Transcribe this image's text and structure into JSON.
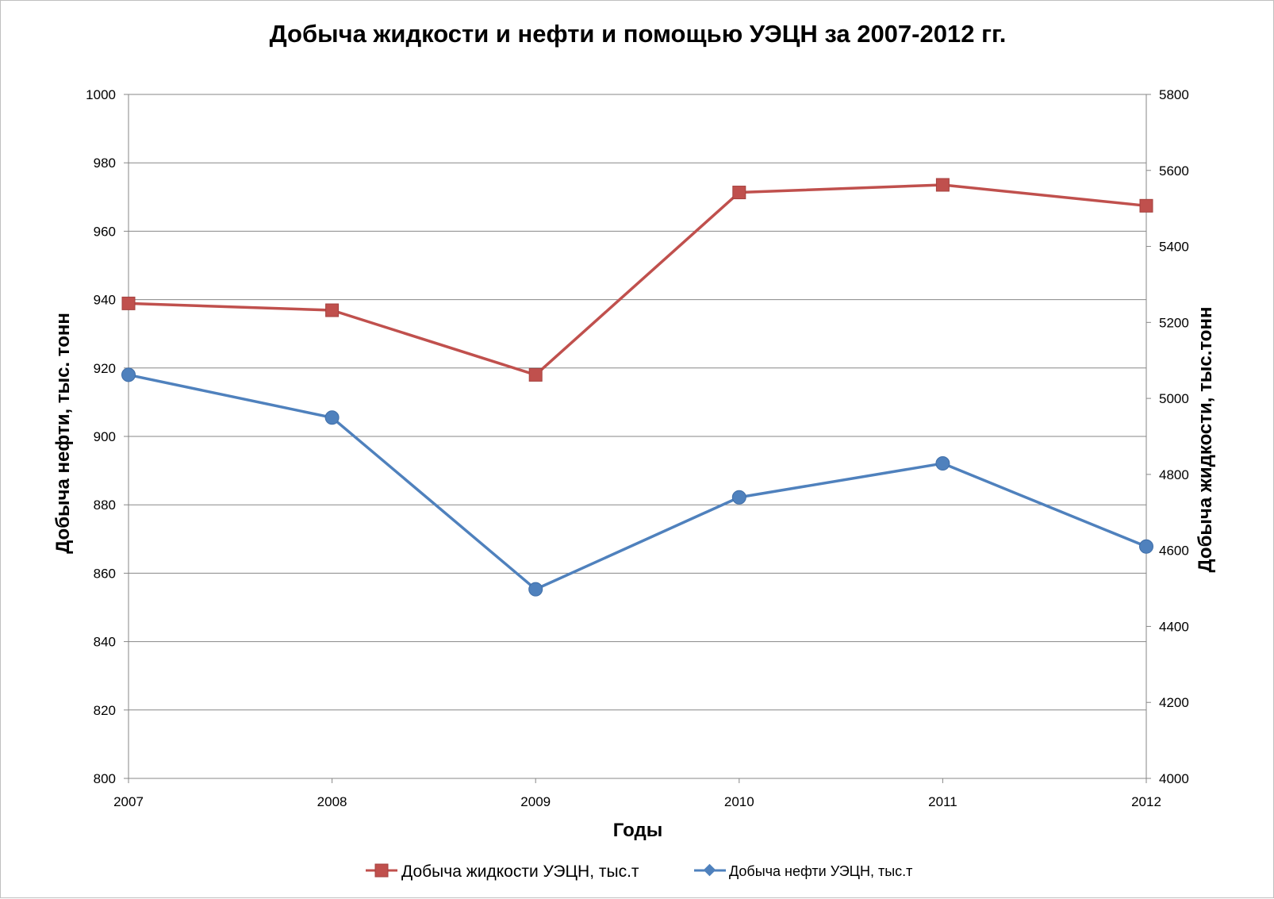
{
  "chart_data": {
    "type": "line",
    "title": "Добыча жидкости и нефти  и помощью УЭЦН за 2007-2012 гг.",
    "xlabel": "Годы",
    "ylabel_left": "Добыча нефти, тыс. тонн",
    "ylabel_right": "Добыча  жидкости, тыс.тонн",
    "x": [
      "2007",
      "2008",
      "2009",
      "2010",
      "2011",
      "2012"
    ],
    "ylim_left": [
      800,
      1000
    ],
    "yticks_left": [
      800,
      820,
      840,
      860,
      880,
      900,
      920,
      940,
      960,
      980,
      1000
    ],
    "ylim_right": [
      4000,
      5800
    ],
    "yticks_right": [
      4000,
      4200,
      4400,
      4600,
      4800,
      5000,
      5200,
      5400,
      5600,
      5800
    ],
    "grid": true,
    "legend_position": "bottom",
    "series": [
      {
        "name": "Добыча жидкости УЭЦН, тыс.т",
        "axis": "right",
        "color": "#C0504D",
        "marker": "square",
        "values": [
          5250,
          5232,
          5062,
          5542,
          5562,
          5507
        ]
      },
      {
        "name": "Добыча нефти УЭЦН, тыс.т",
        "axis": "left",
        "color": "#4F81BD",
        "marker": "circle",
        "values": [
          918,
          905.5,
          855.3,
          882.2,
          892.1,
          867.8
        ]
      }
    ]
  }
}
